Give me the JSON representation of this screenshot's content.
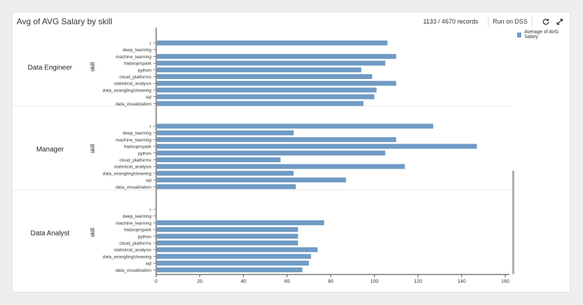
{
  "header": {
    "title": "Avg of AVG Salary by skill",
    "records": "1133 / 4670 records",
    "run_label": "Run on DSS",
    "refresh_icon": "refresh-icon",
    "expand_icon": "expand-icon"
  },
  "legend": {
    "label": "Average of AVG Salary",
    "color": "#6f9bc4"
  },
  "chart_data": {
    "type": "bar",
    "orientation": "horizontal",
    "facet_axis_label": "skill",
    "categories": [
      "r",
      "deep_learning",
      "machine_learning",
      "hadoop/spark",
      "python",
      "cloud_platforms",
      "statistical_analysis",
      "data_wrangling/cleaning",
      "sql",
      "data_visualization"
    ],
    "xlim": [
      0,
      160
    ],
    "xticks": [
      0,
      20,
      40,
      60,
      80,
      100,
      120,
      140,
      160
    ],
    "facets": [
      {
        "name": "Data Engineer",
        "values": [
          106,
          null,
          110,
          105,
          94,
          99,
          110,
          101,
          100,
          95
        ]
      },
      {
        "name": "Manager",
        "values": [
          127,
          63,
          110,
          147,
          105,
          57,
          114,
          63,
          87,
          64
        ]
      },
      {
        "name": "Data Analyst",
        "values": [
          null,
          null,
          77,
          65,
          65,
          65,
          74,
          71,
          70,
          67
        ]
      }
    ],
    "color": "#6f9bc4"
  }
}
